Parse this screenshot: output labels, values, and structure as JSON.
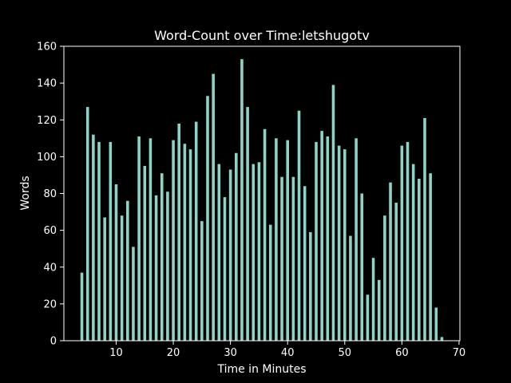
{
  "chart_data": {
    "type": "bar",
    "title": "Word-Count over Time:letshugotv",
    "xlabel": "Time in Minutes",
    "ylabel": "Words",
    "xlim": [
      0.85,
      70.15
    ],
    "ylim": [
      0,
      160
    ],
    "xticks": [
      10,
      20,
      30,
      40,
      50,
      60,
      70
    ],
    "yticks": [
      0,
      20,
      40,
      60,
      80,
      100,
      120,
      140,
      160
    ],
    "grid": false,
    "bar_color": "#8dd3c7",
    "background": "#000000",
    "foreground": "#ffffff",
    "x": [
      4,
      5,
      6,
      7,
      8,
      9,
      10,
      11,
      12,
      13,
      14,
      15,
      16,
      17,
      18,
      19,
      20,
      21,
      22,
      23,
      24,
      25,
      26,
      27,
      28,
      29,
      30,
      31,
      32,
      33,
      34,
      35,
      36,
      37,
      38,
      39,
      40,
      41,
      42,
      43,
      44,
      45,
      46,
      47,
      48,
      49,
      50,
      51,
      52,
      53,
      54,
      55,
      56,
      57,
      58,
      59,
      60,
      61,
      62,
      63,
      64,
      65,
      66,
      67
    ],
    "values": [
      37,
      127,
      112,
      108,
      67,
      108,
      85,
      68,
      76,
      51,
      111,
      95,
      110,
      79,
      91,
      81,
      109,
      118,
      107,
      104,
      119,
      65,
      133,
      145,
      96,
      78,
      93,
      102,
      153,
      127,
      96,
      97,
      115,
      63,
      110,
      89,
      109,
      89,
      125,
      84,
      59,
      108,
      114,
      111,
      139,
      106,
      104,
      57,
      110,
      80,
      25,
      45,
      33,
      68,
      86,
      75,
      106,
      108,
      96,
      88,
      121,
      91,
      18,
      2
    ]
  }
}
